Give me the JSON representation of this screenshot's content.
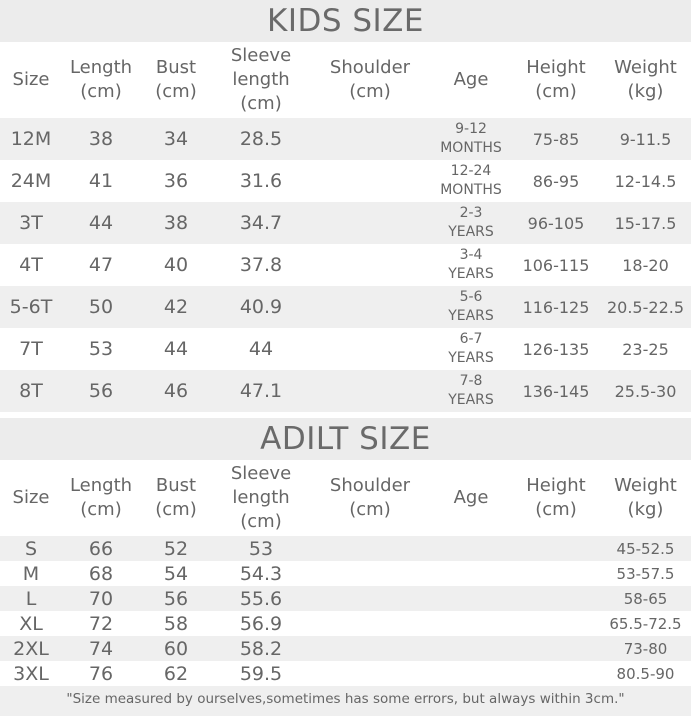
{
  "kids": {
    "title": "KIDS SIZE",
    "headers": [
      "Size",
      "Length\n(cm)",
      "Bust\n(cm)",
      "Sleeve\nlength\n(cm)",
      "Shoulder\n(cm)",
      "Age",
      "Height\n(cm)",
      "Weight\n(kg)"
    ],
    "rows": [
      [
        "12M",
        "38",
        "34",
        "28.5",
        "",
        "9-12\nMONTHS",
        "75-85",
        "9-11.5"
      ],
      [
        "24M",
        "41",
        "36",
        "31.6",
        "",
        "12-24\nMONTHS",
        "86-95",
        "12-14.5"
      ],
      [
        "3T",
        "44",
        "38",
        "34.7",
        "",
        "2-3\nYEARS",
        "96-105",
        "15-17.5"
      ],
      [
        "4T",
        "47",
        "40",
        "37.8",
        "",
        "3-4\nYEARS",
        "106-115",
        "18-20"
      ],
      [
        "5-6T",
        "50",
        "42",
        "40.9",
        "",
        "5-6\nYEARS",
        "116-125",
        "20.5-22.5"
      ],
      [
        "7T",
        "53",
        "44",
        "44",
        "",
        "6-7\nYEARS",
        "126-135",
        "23-25"
      ],
      [
        "8T",
        "56",
        "46",
        "47.1",
        "",
        "7-8\nYEARS",
        "136-145",
        "25.5-30"
      ]
    ]
  },
  "adult": {
    "title": "ADILT SIZE",
    "headers": [
      "Size",
      "Length\n(cm)",
      "Bust\n(cm)",
      "Sleeve\nlength\n(cm)",
      "Shoulder\n(cm)",
      "Age",
      "Height\n(cm)",
      "Weight\n(kg)"
    ],
    "rows": [
      [
        "S",
        "66",
        "52",
        "53",
        "",
        "",
        "",
        "45-52.5"
      ],
      [
        "M",
        "68",
        "54",
        "54.3",
        "",
        "",
        "",
        "53-57.5"
      ],
      [
        "L",
        "70",
        "56",
        "55.6",
        "",
        "",
        "",
        "58-65"
      ],
      [
        "XL",
        "72",
        "58",
        "56.9",
        "",
        "",
        "",
        "65.5-72.5"
      ],
      [
        "2XL",
        "74",
        "60",
        "58.2",
        "",
        "",
        "",
        "73-80"
      ],
      [
        "3XL",
        "76",
        "62",
        "59.5",
        "",
        "",
        "",
        "80.5-90"
      ]
    ]
  },
  "footer": "\"Size measured by ourselves,sometimes has some errors, but always within 3cm.\""
}
